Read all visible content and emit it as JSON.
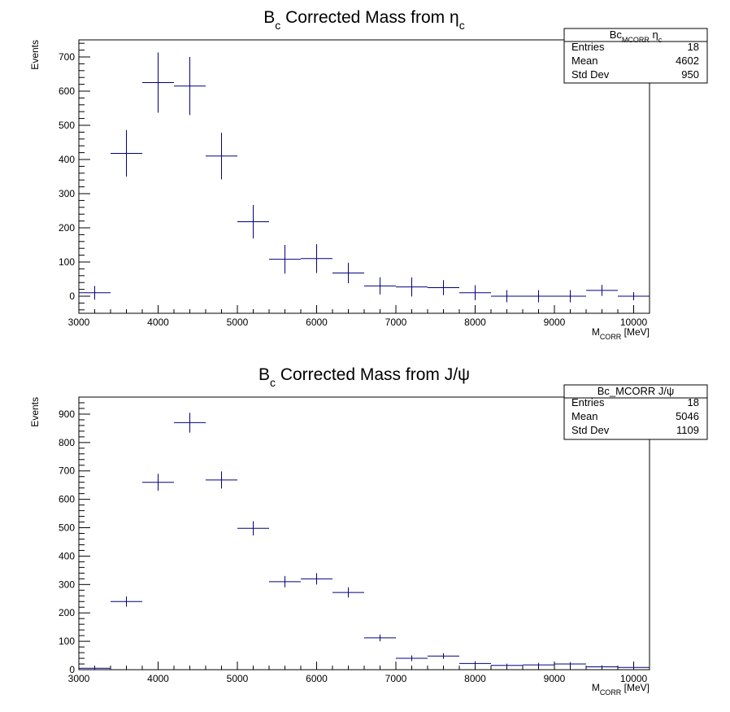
{
  "colors": {
    "marker": "#000080",
    "frame": "#000000",
    "background": "#ffffff"
  },
  "chart_data": [
    {
      "type": "scatter",
      "style": "error-bar histogram",
      "title": {
        "main": "B",
        "sub": "c",
        "rest": " Corrected Mass from ",
        "particle": "η",
        "particle_sub": "c"
      },
      "xlabel": {
        "main": "M",
        "sub": "CORR",
        "rest": " [MeV]"
      },
      "ylabel": "Events",
      "xlim": [
        3000,
        10200
      ],
      "ylim": [
        -50,
        750
      ],
      "x_ticks": [
        3000,
        4000,
        5000,
        6000,
        7000,
        8000,
        9000,
        10000
      ],
      "y_ticks": [
        0,
        100,
        200,
        300,
        400,
        500,
        600,
        700
      ],
      "bin_width": 400,
      "x": [
        3200,
        3600,
        4000,
        4400,
        4800,
        5200,
        5600,
        6000,
        6400,
        6800,
        7200,
        7600,
        8000,
        8400,
        8800,
        9200,
        9600,
        10000
      ],
      "y": [
        10,
        418,
        625,
        615,
        410,
        218,
        108,
        110,
        68,
        30,
        27,
        25,
        10,
        0,
        0,
        0,
        17,
        0
      ],
      "y_err": [
        20,
        68,
        88,
        85,
        68,
        49,
        42,
        42,
        30,
        25,
        28,
        22,
        22,
        18,
        18,
        18,
        16,
        12
      ],
      "legend": {
        "title": {
          "main": "Bc",
          "sub": "MCORR",
          "rest": " ",
          "particle": "η",
          "particle_sub": "c"
        },
        "rows": [
          {
            "label": "Entries",
            "value": "18"
          },
          {
            "label": "Mean",
            "value": "4602"
          },
          {
            "label": "Std Dev",
            "value": "950"
          }
        ],
        "placement": "top-right"
      },
      "grid": false
    },
    {
      "type": "scatter",
      "style": "error-bar histogram",
      "title": {
        "main": "B",
        "sub": "c",
        "rest": " Corrected Mass from J/ψ"
      },
      "xlabel": {
        "main": "M",
        "sub": "CORR",
        "rest": " [MeV]"
      },
      "ylabel": "Events",
      "xlim": [
        3000,
        10200
      ],
      "ylim": [
        0,
        960
      ],
      "x_ticks": [
        3000,
        4000,
        5000,
        6000,
        7000,
        8000,
        9000,
        10000
      ],
      "y_ticks": [
        0,
        100,
        200,
        300,
        400,
        500,
        600,
        700,
        800,
        900
      ],
      "bin_width": 400,
      "x": [
        3200,
        3600,
        4000,
        4400,
        4800,
        5200,
        5600,
        6000,
        6400,
        6800,
        7200,
        7600,
        8000,
        8400,
        8800,
        9200,
        9600,
        10000
      ],
      "y": [
        5,
        240,
        660,
        870,
        668,
        498,
        310,
        320,
        272,
        112,
        40,
        48,
        22,
        15,
        17,
        20,
        10,
        8
      ],
      "y_err": [
        5,
        18,
        30,
        35,
        30,
        25,
        20,
        20,
        18,
        12,
        10,
        10,
        8,
        6,
        7,
        7,
        5,
        5
      ],
      "legend": {
        "title": {
          "main": "Bc_MCORR J/ψ"
        },
        "rows": [
          {
            "label": "Entries",
            "value": "18"
          },
          {
            "label": "Mean",
            "value": "5046"
          },
          {
            "label": "Std Dev",
            "value": "1109"
          }
        ],
        "placement": "top-right"
      },
      "grid": false
    }
  ]
}
